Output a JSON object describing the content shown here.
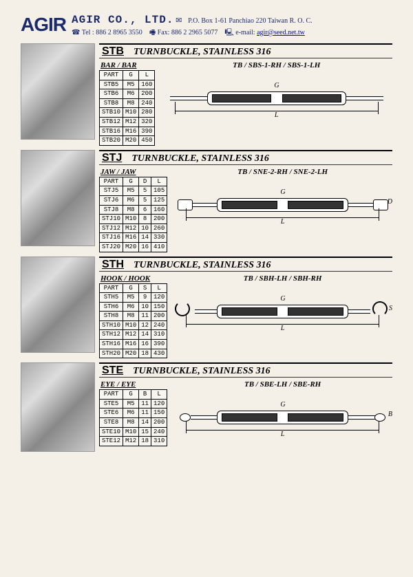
{
  "header": {
    "logo": "AGIR",
    "company": "AGIR CO., LTD.",
    "address": "P.O. Box 1-61 Panchiao 220 Taiwan R. O. C.",
    "tel_label": "Tel :",
    "tel": "886 2 8965 3550",
    "fax_label": "Fax:",
    "fax": "886 2 2965 5077",
    "email_label": "e-mail:",
    "email": "agir@seed.net.tw"
  },
  "dim_G": "G",
  "dim_L": "L",
  "sections": [
    {
      "code": "STB",
      "title": "TURNBUCKLE, STAINLESS 316",
      "table_caption": "BAR / BAR",
      "diagram_caption": "TB / SBS-1-RH / SBS-1-LH",
      "headers": [
        "PART",
        "G",
        "L"
      ],
      "rows": [
        [
          "STB5",
          "M5",
          "160"
        ],
        [
          "STB6",
          "M6",
          "200"
        ],
        [
          "STB8",
          "M8",
          "240"
        ],
        [
          "STB10",
          "M10",
          "280"
        ],
        [
          "STB12",
          "M12",
          "320"
        ],
        [
          "STB16",
          "M16",
          "390"
        ],
        [
          "STB20",
          "M20",
          "450"
        ]
      ],
      "side_dim": ""
    },
    {
      "code": "STJ",
      "title": "TURNBUCKLE, STAINLESS 316",
      "table_caption": "JAW / JAW",
      "diagram_caption": "TB / SNE-2-RH / SNE-2-LH",
      "headers": [
        "PART",
        "G",
        "D",
        "L"
      ],
      "rows": [
        [
          "STJ5",
          "M5",
          "5",
          "105"
        ],
        [
          "STJ6",
          "M6",
          "5",
          "125"
        ],
        [
          "STJ8",
          "M8",
          "6",
          "160"
        ],
        [
          "STJ10",
          "M10",
          "8",
          "200"
        ],
        [
          "STJ12",
          "M12",
          "10",
          "260"
        ],
        [
          "STJ16",
          "M16",
          "14",
          "330"
        ],
        [
          "STJ20",
          "M20",
          "16",
          "410"
        ]
      ],
      "side_dim": "D"
    },
    {
      "code": "STH",
      "title": "TURNBUCKLE, STAINLESS 316",
      "table_caption": "HOOK / HOOK",
      "diagram_caption": "TB / SBH-LH / SBH-RH",
      "headers": [
        "PART",
        "G",
        "S",
        "L"
      ],
      "rows": [
        [
          "STH5",
          "M5",
          "9",
          "120"
        ],
        [
          "STH6",
          "M6",
          "10",
          "150"
        ],
        [
          "STH8",
          "M8",
          "11",
          "200"
        ],
        [
          "STH10",
          "M10",
          "12",
          "240"
        ],
        [
          "STH12",
          "M12",
          "14",
          "310"
        ],
        [
          "STH16",
          "M16",
          "16",
          "390"
        ],
        [
          "STH20",
          "M20",
          "18",
          "430"
        ]
      ],
      "side_dim": "S"
    },
    {
      "code": "STE",
      "title": "TURNBUCKLE, STAINLESS 316",
      "table_caption": "EYE / EYE",
      "diagram_caption": "TB / SBE-LH / SBE-RH",
      "headers": [
        "PART",
        "G",
        "B",
        "L"
      ],
      "rows": [
        [
          "STE5",
          "M5",
          "11",
          "120"
        ],
        [
          "STE6",
          "M6",
          "11",
          "150"
        ],
        [
          "STE8",
          "M8",
          "14",
          "200"
        ],
        [
          "STE10",
          "M10",
          "15",
          "240"
        ],
        [
          "STE12",
          "M12",
          "18",
          "310"
        ]
      ],
      "side_dim": "B"
    }
  ]
}
